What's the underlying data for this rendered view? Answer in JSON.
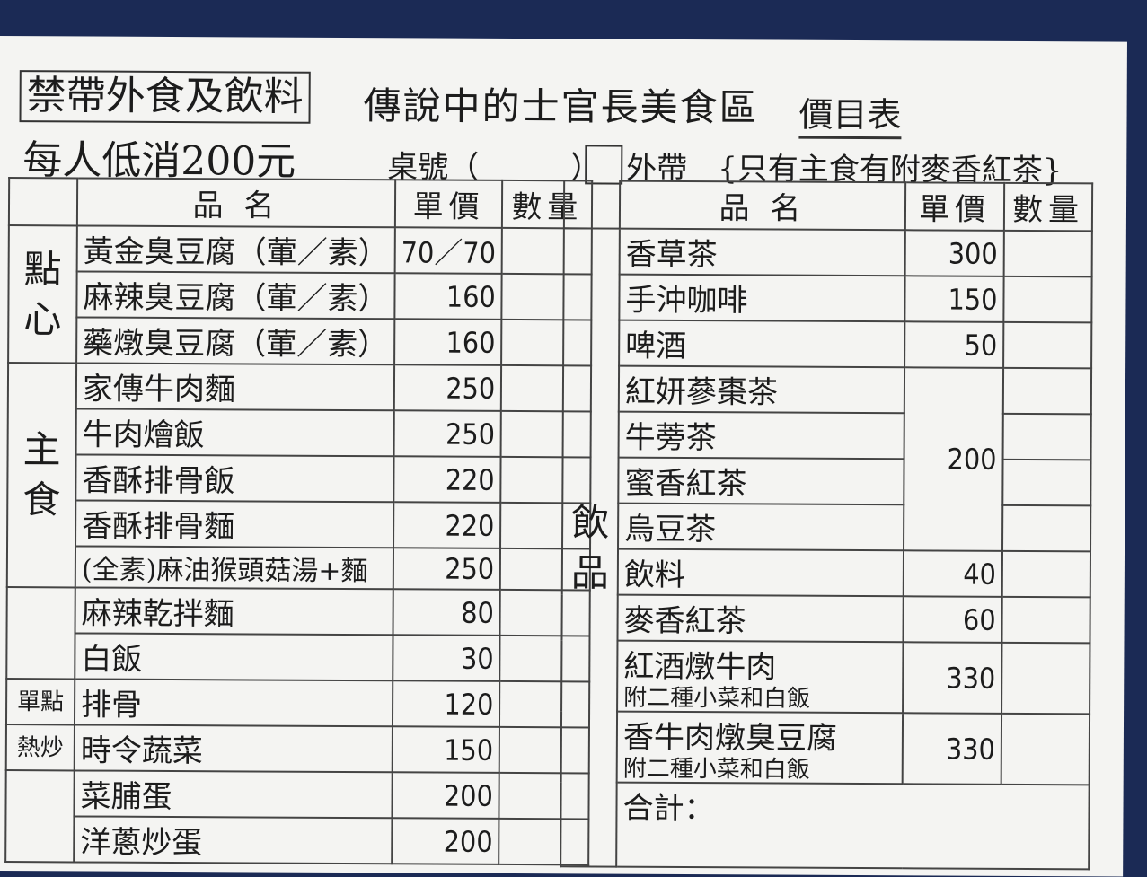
{
  "header": {
    "no_outside_food": "禁帶外食及飲料",
    "title": "傳說中的士官長美食區",
    "price_list": "價目表",
    "min_spend": "每人低消200元",
    "table_no": "桌號（　　　）",
    "takeout": "外帶",
    "note": "{只有主食有附麥香紅茶}"
  },
  "columns": {
    "name": "品 名",
    "price": "單價",
    "qty": "數量"
  },
  "left": {
    "categories": {
      "snacks": "點心",
      "mains": "主食",
      "single": "單點",
      "stirfry": "熱炒"
    },
    "items": [
      {
        "name": "黃金臭豆腐（葷／素）",
        "price": "70／70"
      },
      {
        "name": "麻辣臭豆腐（葷／素）",
        "price": "160"
      },
      {
        "name": "藥燉臭豆腐（葷／素）",
        "price": "160"
      },
      {
        "name": "家傳牛肉麵",
        "price": "250"
      },
      {
        "name": "牛肉燴飯",
        "price": "250"
      },
      {
        "name": "香酥排骨飯",
        "price": "220"
      },
      {
        "name": "香酥排骨麵",
        "price": "220"
      },
      {
        "name": "(全素)麻油猴頭菇湯+麵",
        "price": "250"
      },
      {
        "name": "麻辣乾拌麵",
        "price": "80"
      },
      {
        "name": "白飯",
        "price": "30"
      },
      {
        "name": "排骨",
        "price": "120"
      },
      {
        "name": "時令蔬菜",
        "price": "150"
      },
      {
        "name": "菜脯蛋",
        "price": "200"
      },
      {
        "name": "洋蔥炒蛋",
        "price": "200"
      }
    ]
  },
  "right": {
    "category": "飲品",
    "items": [
      {
        "name": "香草茶",
        "price": "300"
      },
      {
        "name": "手沖咖啡",
        "price": "150"
      },
      {
        "name": "啤酒",
        "price": "50"
      },
      {
        "name": "紅妍蔘棗茶"
      },
      {
        "name": "牛蒡茶"
      },
      {
        "name": "蜜香紅茶"
      },
      {
        "name": "烏豆茶"
      },
      {
        "name": "飲料",
        "price": "40"
      },
      {
        "name": "麥香紅茶",
        "price": "60"
      },
      {
        "name": "紅酒燉牛肉",
        "sub": "附二種小菜和白飯",
        "price": "330"
      },
      {
        "name": "香牛肉燉臭豆腐",
        "sub": "附二種小菜和白飯",
        "price": "330"
      }
    ],
    "tea_group_price": "200",
    "total_label": "合計："
  }
}
